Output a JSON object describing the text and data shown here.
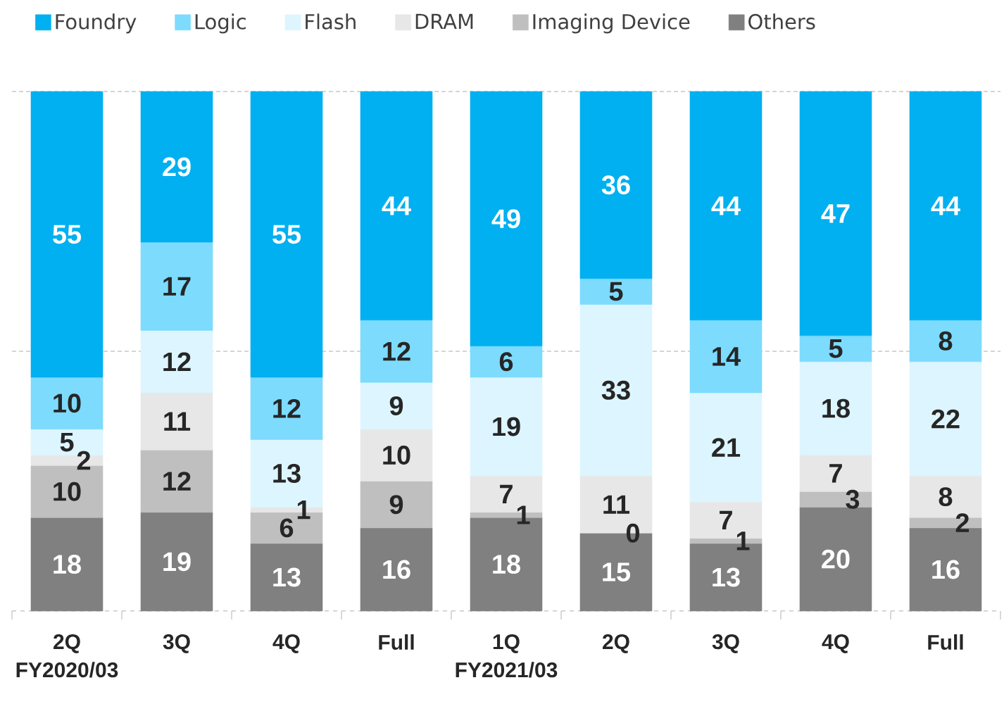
{
  "chart_data": {
    "type": "bar",
    "stacked": true,
    "categories": [
      "2Q FY2020/03",
      "3Q",
      "4Q",
      "Full",
      "1Q FY2021/03",
      "2Q",
      "3Q",
      "4Q",
      "Full"
    ],
    "series": [
      {
        "name": "Others",
        "color": "#808080",
        "values": [
          18,
          19,
          13,
          16,
          18,
          15,
          13,
          20,
          16
        ],
        "value_labels": [
          "18",
          "19",
          "13",
          "16",
          "18",
          "15",
          "13",
          "20",
          "16"
        ]
      },
      {
        "name": "Imaging Device",
        "color": "#bfbfbf",
        "values": [
          10,
          12,
          6,
          9,
          1,
          0,
          1,
          3,
          2
        ],
        "value_labels": [
          "10",
          "12",
          "6",
          "9",
          "1",
          null,
          "1",
          "3",
          "2"
        ]
      },
      {
        "name": "DRAM",
        "color": "#e7e7e7",
        "values": [
          2,
          11,
          1,
          10,
          7,
          11,
          7,
          7,
          8
        ],
        "value_labels": [
          "2",
          "11",
          "1",
          "10",
          "7",
          "11",
          "7",
          "7",
          "8"
        ]
      },
      {
        "name": "Flash",
        "color": "#ddf5fe",
        "values": [
          5,
          12,
          13,
          9,
          19,
          33,
          21,
          18,
          22
        ],
        "value_labels": [
          "5",
          "12",
          "13",
          "9",
          "19",
          "33",
          "21",
          "18",
          "22"
        ]
      },
      {
        "name": "Logic",
        "color": "#7ddbfe",
        "values": [
          10,
          17,
          12,
          12,
          6,
          5,
          14,
          5,
          8
        ],
        "value_labels": [
          "10",
          "17",
          "12",
          "12",
          "6",
          "5",
          "14",
          "5",
          "8"
        ]
      },
      {
        "name": "Foundry",
        "color": "#00b0f0",
        "values": [
          55,
          29,
          55,
          44,
          49,
          36,
          44,
          47,
          44
        ],
        "value_labels": [
          "55",
          "29",
          "55",
          "44",
          "49",
          "36",
          "44",
          "47",
          "44"
        ]
      }
    ],
    "ylim": [
      0,
      100
    ],
    "annotations": [
      {
        "text": "0",
        "x": "2Q",
        "y": 15
      }
    ],
    "ref_lines": [
      {
        "axis": "y",
        "value": 50,
        "color": "#c8c8c8",
        "line_style": "dashed"
      },
      {
        "axis": "y",
        "value": 100,
        "color": "#c8c8c8",
        "line_style": "dashed"
      }
    ],
    "tick_labels": "x",
    "legend": "top"
  }
}
